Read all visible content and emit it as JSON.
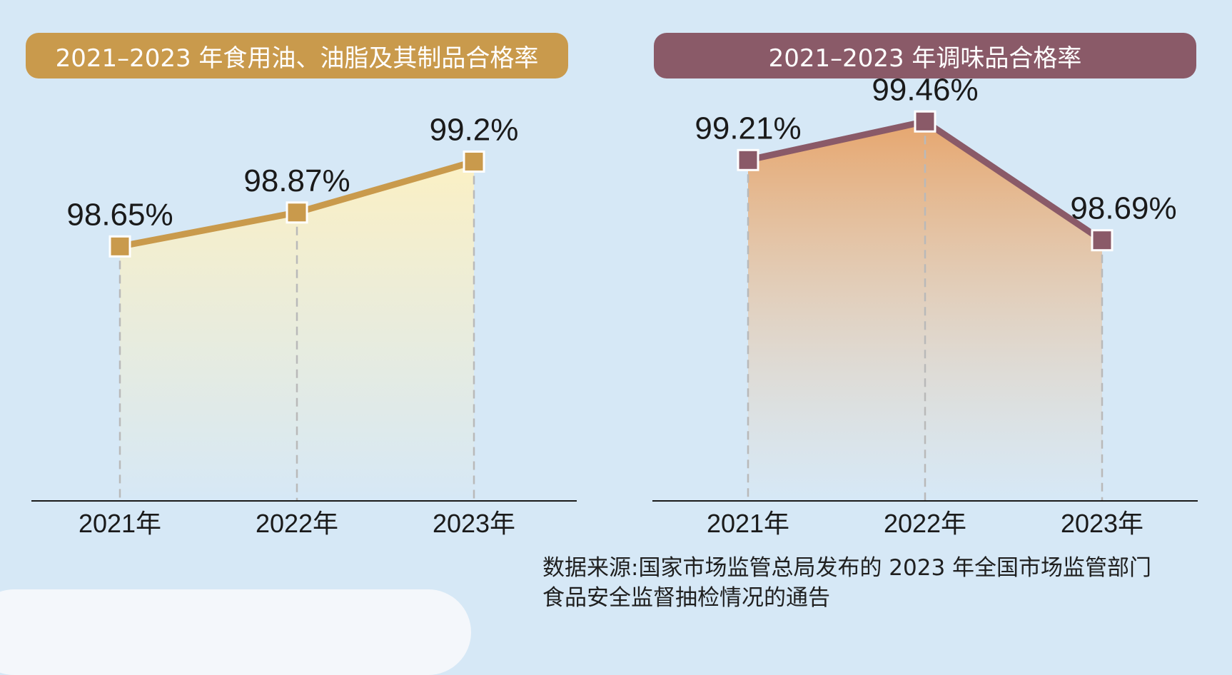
{
  "colors": {
    "background": "#d6e8f6",
    "left_accent": "#c99a4c",
    "right_accent": "#8a5a68"
  },
  "chart_data": [
    {
      "type": "area",
      "title": "2021–2023 年食用油、油脂及其制品合格率",
      "categories": [
        "2021年",
        "2022年",
        "2023年"
      ],
      "values": [
        98.65,
        98.87,
        99.2
      ],
      "value_labels": [
        "98.65%",
        "98.87%",
        "99.2%"
      ],
      "ylim": [
        97.0,
        99.6
      ],
      "color": "#c99a4c",
      "grid": false
    },
    {
      "type": "area",
      "title": "2021–2023 年调味品合格率",
      "categories": [
        "2021年",
        "2022年",
        "2023年"
      ],
      "values": [
        99.21,
        99.46,
        98.69
      ],
      "value_labels": [
        "99.21%",
        "99.46%",
        "98.69%"
      ],
      "ylim": [
        97.0,
        99.6
      ],
      "color": "#8a5a68",
      "grid": false
    }
  ],
  "source": {
    "line1": "数据来源:国家市场监管总局发布的 2023 年全国市场监管部门",
    "line2": "食品安全监督抽检情况的通告"
  }
}
